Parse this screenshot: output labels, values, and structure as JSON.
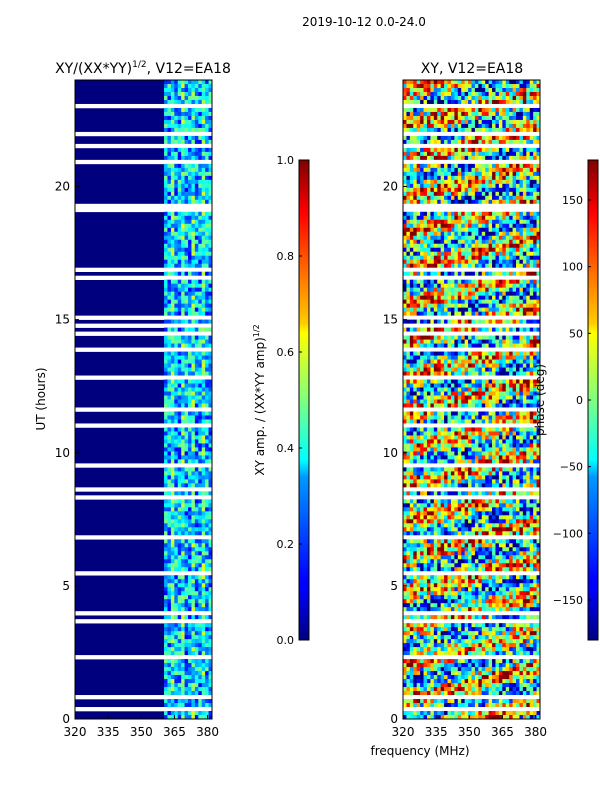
{
  "figure": {
    "suptitle": "2019-10-12 0.0-24.0",
    "xlabel": "frequency (MHz)"
  },
  "chart_data": [
    {
      "type": "heatmap",
      "title_text": "XY/(XX*YY)",
      "title_sup": "1/2",
      "title_suffix": ", V12=EA18",
      "xlabel": "",
      "ylabel": "UT (hours)",
      "xlim": [
        320,
        382
      ],
      "ylim": [
        0,
        24
      ],
      "xticks": [
        320,
        335,
        350,
        365,
        380
      ],
      "yticks": [
        0,
        5,
        10,
        15,
        20
      ],
      "colormap": "jet",
      "notes": "Mostly near 0 below ~360 MHz; elevated amplitude in vertical stripes between ~360 and 382 MHz; white gaps are flagged times.",
      "colorbar": {
        "label_text": "XY amp. / (XX*YY amp)",
        "label_sup": "1/2",
        "range": [
          0.0,
          1.0
        ],
        "ticks": [
          0.0,
          0.2,
          0.4,
          0.6,
          0.8,
          1.0
        ],
        "tick_labels": [
          "0.0",
          "0.2",
          "0.4",
          "0.6",
          "0.8",
          "1.0"
        ]
      }
    },
    {
      "type": "heatmap",
      "title": "XY, V12=EA18",
      "xlabel": "",
      "ylabel": "",
      "xlim": [
        320,
        382
      ],
      "ylim": [
        0,
        24
      ],
      "xticks": [
        320,
        335,
        350,
        365,
        380
      ],
      "yticks": [
        0,
        5,
        10,
        15,
        20
      ],
      "colormap": "jet",
      "notes": "Phase in degrees spanning the full -180 to 180 range, noisy with horizontal banding; white gaps are flagged times.",
      "colorbar": {
        "label_text": "phase (deg)",
        "range": [
          -180,
          180
        ],
        "ticks": [
          -150,
          -100,
          -50,
          0,
          50,
          100,
          150
        ],
        "tick_labels": [
          "−150",
          "−100",
          "−50",
          "0",
          "50",
          "100",
          "150"
        ]
      }
    }
  ]
}
